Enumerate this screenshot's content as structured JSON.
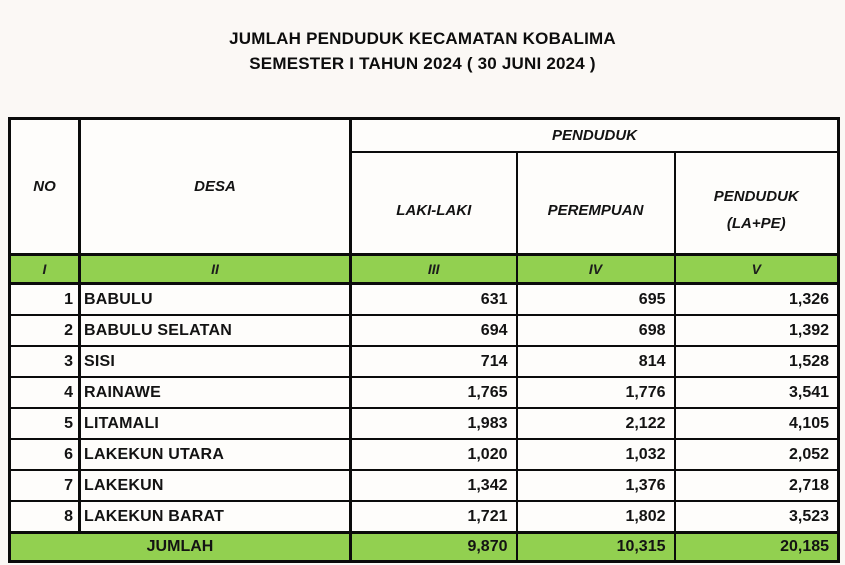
{
  "title": {
    "line1": "JUMLAH PENDUDUK KECAMATAN KOBALIMA",
    "line2": "SEMESTER I TAHUN 2024 ( 30 JUNI 2024 )"
  },
  "table": {
    "header": {
      "no": "NO",
      "desa": "DESA",
      "group": "PENDUDUK",
      "laki": "LAKI-LAKI",
      "perempuan": "PEREMPUAN",
      "total_line1": "PENDUDUK",
      "total_line2": "(LA+PE)"
    },
    "index_row": [
      "I",
      "II",
      "III",
      "IV",
      "V"
    ],
    "rows": [
      {
        "no": "1",
        "desa": "BABULU",
        "laki": "631",
        "perempuan": "695",
        "total": "1,326"
      },
      {
        "no": "2",
        "desa": "BABULU SELATAN",
        "laki": "694",
        "perempuan": "698",
        "total": "1,392"
      },
      {
        "no": "3",
        "desa": "SISI",
        "laki": "714",
        "perempuan": "814",
        "total": "1,528"
      },
      {
        "no": "4",
        "desa": "RAINAWE",
        "laki": "1,765",
        "perempuan": "1,776",
        "total": "3,541"
      },
      {
        "no": "5",
        "desa": "LITAMALI",
        "laki": "1,983",
        "perempuan": "2,122",
        "total": "4,105"
      },
      {
        "no": "6",
        "desa": "LAKEKUN UTARA",
        "laki": "1,020",
        "perempuan": "1,032",
        "total": "2,052"
      },
      {
        "no": "7",
        "desa": "LAKEKUN",
        "laki": "1,342",
        "perempuan": "1,376",
        "total": "2,718"
      },
      {
        "no": "8",
        "desa": "LAKEKUN BARAT",
        "laki": "1,721",
        "perempuan": "1,802",
        "total": "3,523"
      }
    ],
    "footer": {
      "label": "JUMLAH",
      "laki": "9,870",
      "perempuan": "10,315",
      "total": "20,185"
    }
  },
  "colors": {
    "header_green": "#92D050",
    "border": "#0B0B0B",
    "background": "#FBF8F5",
    "text": "#131313"
  }
}
